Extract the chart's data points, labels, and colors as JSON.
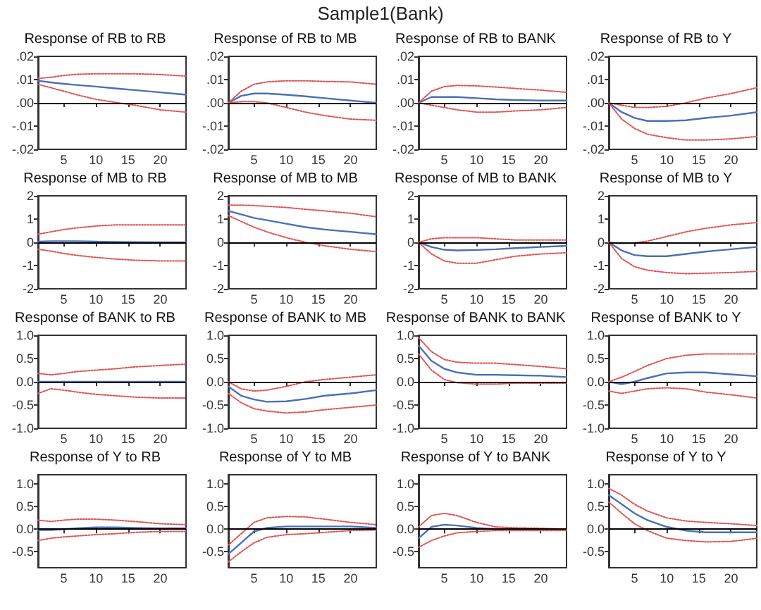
{
  "chart_data": [
    {
      "type": "line",
      "title": "Response of RB to RB",
      "annotations": [
        "Sample1(Bank)"
      ],
      "x": [
        1,
        3,
        5,
        7,
        10,
        13,
        16,
        20,
        24
      ],
      "xlim": [
        1,
        24
      ],
      "xticks": [
        5,
        10,
        15,
        20
      ],
      "ylim": [
        -0.02,
        0.02
      ],
      "yticks": [
        {
          "value": -0.02,
          "label": "-.02"
        },
        {
          "value": -0.01,
          "label": "-.01"
        },
        {
          "value": 0,
          "label": ".00"
        },
        {
          "value": 0.01,
          "label": ".01"
        },
        {
          "value": 0.02,
          "label": ".02"
        }
      ],
      "marker": "none",
      "grid": false,
      "ref_lines": [
        {
          "axis": "y",
          "value": 0,
          "color": "#000000"
        }
      ],
      "series": [
        {
          "color": "#4a6fb5",
          "line_style": "solid",
          "values": [
            0.0095,
            0.0088,
            0.0082,
            0.0077,
            0.007,
            0.0062,
            0.0055,
            0.0045,
            0.0035
          ]
        },
        {
          "color": "#e05050",
          "line_style": "dotted",
          "values": [
            0.0105,
            0.011,
            0.0118,
            0.0123,
            0.0125,
            0.0125,
            0.0125,
            0.0122,
            0.0115
          ]
        },
        {
          "color": "#e05050",
          "line_style": "dotted",
          "values": [
            0.008,
            0.0065,
            0.005,
            0.0035,
            0.0015,
            0.0002,
            -0.001,
            -0.003,
            -0.004
          ]
        }
      ]
    },
    {
      "type": "line",
      "title": "Response of RB to MB",
      "x": [
        1,
        3,
        5,
        7,
        10,
        13,
        16,
        20,
        24
      ],
      "xlim": [
        1,
        24
      ],
      "xticks": [
        5,
        10,
        15,
        20
      ],
      "ylim": [
        -0.02,
        0.02
      ],
      "yticks": [
        {
          "value": -0.02,
          "label": "-.02"
        },
        {
          "value": -0.01,
          "label": "-.01"
        },
        {
          "value": 0,
          "label": ".00"
        },
        {
          "value": 0.01,
          "label": ".01"
        },
        {
          "value": 0.02,
          "label": ".02"
        }
      ],
      "marker": "none",
      "grid": false,
      "ref_lines": [
        {
          "axis": "y",
          "value": 0,
          "color": "#000000"
        }
      ],
      "series": [
        {
          "color": "#4a6fb5",
          "line_style": "solid",
          "values": [
            0,
            0.003,
            0.004,
            0.004,
            0.0035,
            0.0028,
            0.002,
            0.001,
            0
          ]
        },
        {
          "color": "#e05050",
          "line_style": "dotted",
          "values": [
            0,
            0.005,
            0.008,
            0.009,
            0.0095,
            0.0095,
            0.0092,
            0.009,
            0.008
          ]
        },
        {
          "color": "#e05050",
          "line_style": "dotted",
          "values": [
            0,
            0.0005,
            0.0005,
            0,
            -0.002,
            -0.004,
            -0.0055,
            -0.007,
            -0.0075
          ]
        }
      ]
    },
    {
      "type": "line",
      "title": "Response of RB to BANK",
      "x": [
        1,
        3,
        5,
        7,
        10,
        13,
        16,
        20,
        24
      ],
      "xlim": [
        1,
        24
      ],
      "xticks": [
        5,
        10,
        15,
        20
      ],
      "ylim": [
        -0.02,
        0.02
      ],
      "yticks": [
        {
          "value": -0.02,
          "label": "-.02"
        },
        {
          "value": -0.01,
          "label": "-.01"
        },
        {
          "value": 0,
          "label": ".00"
        },
        {
          "value": 0.01,
          "label": ".01"
        },
        {
          "value": 0.02,
          "label": ".02"
        }
      ],
      "marker": "none",
      "grid": false,
      "ref_lines": [
        {
          "axis": "y",
          "value": 0,
          "color": "#000000"
        }
      ],
      "series": [
        {
          "color": "#4a6fb5",
          "line_style": "solid",
          "values": [
            0,
            0.0025,
            0.0025,
            0.0025,
            0.002,
            0.0015,
            0.0012,
            0.001,
            0.001
          ]
        },
        {
          "color": "#e05050",
          "line_style": "dotted",
          "values": [
            0,
            0.005,
            0.007,
            0.0075,
            0.0073,
            0.0068,
            0.0062,
            0.0055,
            0.0045
          ]
        },
        {
          "color": "#e05050",
          "line_style": "dotted",
          "values": [
            0,
            -0.001,
            -0.002,
            -0.003,
            -0.004,
            -0.004,
            -0.0035,
            -0.003,
            -0.002
          ]
        }
      ]
    },
    {
      "type": "line",
      "title": "Response of RB to Y",
      "x": [
        1,
        3,
        5,
        7,
        10,
        13,
        16,
        20,
        24
      ],
      "xlim": [
        1,
        24
      ],
      "xticks": [
        5,
        10,
        15,
        20
      ],
      "ylim": [
        -0.02,
        0.02
      ],
      "yticks": [
        {
          "value": -0.02,
          "label": "-.02"
        },
        {
          "value": -0.01,
          "label": "-.01"
        },
        {
          "value": 0,
          "label": ".00"
        },
        {
          "value": 0.01,
          "label": ".01"
        },
        {
          "value": 0.02,
          "label": ".02"
        }
      ],
      "marker": "none",
      "grid": false,
      "ref_lines": [
        {
          "axis": "y",
          "value": 0,
          "color": "#000000"
        }
      ],
      "series": [
        {
          "color": "#4a6fb5",
          "line_style": "solid",
          "values": [
            0,
            -0.004,
            -0.0065,
            -0.0078,
            -0.0078,
            -0.0075,
            -0.0065,
            -0.0055,
            -0.004
          ]
        },
        {
          "color": "#e05050",
          "line_style": "dotted",
          "values": [
            0,
            -0.001,
            -0.002,
            -0.002,
            -0.0015,
            0,
            0.002,
            0.004,
            0.0065
          ]
        },
        {
          "color": "#e05050",
          "line_style": "dotted",
          "values": [
            0,
            -0.007,
            -0.011,
            -0.0135,
            -0.015,
            -0.016,
            -0.016,
            -0.0155,
            -0.0145
          ]
        }
      ]
    },
    {
      "type": "line",
      "title": "Response of MB to RB",
      "x": [
        1,
        3,
        5,
        7,
        10,
        13,
        16,
        20,
        24
      ],
      "xlim": [
        1,
        24
      ],
      "xticks": [
        5,
        10,
        15,
        20
      ],
      "ylim": [
        -2,
        2
      ],
      "yticks": [
        -2,
        -1,
        0,
        1,
        2
      ],
      "marker": "none",
      "grid": false,
      "ref_lines": [
        {
          "axis": "y",
          "value": 0,
          "color": "#000000"
        }
      ],
      "series": [
        {
          "color": "#4a6fb5",
          "line_style": "solid",
          "values": [
            0.03,
            0.05,
            0.05,
            0.05,
            0.03,
            0.02,
            0.01,
            0,
            0
          ]
        },
        {
          "color": "#e05050",
          "line_style": "dotted",
          "values": [
            0.35,
            0.45,
            0.55,
            0.62,
            0.7,
            0.75,
            0.75,
            0.75,
            0.75
          ]
        },
        {
          "color": "#e05050",
          "line_style": "dotted",
          "values": [
            -0.3,
            -0.38,
            -0.48,
            -0.56,
            -0.65,
            -0.72,
            -0.77,
            -0.8,
            -0.8
          ]
        }
      ]
    },
    {
      "type": "line",
      "title": "Response of MB to MB",
      "x": [
        1,
        3,
        5,
        7,
        10,
        13,
        16,
        20,
        24
      ],
      "xlim": [
        1,
        24
      ],
      "xticks": [
        5,
        10,
        15,
        20
      ],
      "ylim": [
        -2,
        2
      ],
      "yticks": [
        -2,
        -1,
        0,
        1,
        2
      ],
      "marker": "none",
      "grid": false,
      "ref_lines": [
        {
          "axis": "y",
          "value": 0,
          "color": "#000000"
        }
      ],
      "series": [
        {
          "color": "#4a6fb5",
          "line_style": "solid",
          "values": [
            1.35,
            1.2,
            1.05,
            0.95,
            0.8,
            0.65,
            0.55,
            0.45,
            0.35
          ]
        },
        {
          "color": "#e05050",
          "line_style": "dotted",
          "values": [
            1.6,
            1.6,
            1.58,
            1.55,
            1.5,
            1.42,
            1.35,
            1.25,
            1.1
          ]
        },
        {
          "color": "#e05050",
          "line_style": "dotted",
          "values": [
            1.15,
            0.9,
            0.65,
            0.45,
            0.2,
            0,
            -0.15,
            -0.3,
            -0.4
          ]
        }
      ]
    },
    {
      "type": "line",
      "title": "Response of MB to BANK",
      "x": [
        1,
        3,
        5,
        7,
        10,
        13,
        16,
        20,
        24
      ],
      "xlim": [
        1,
        24
      ],
      "xticks": [
        5,
        10,
        15,
        20
      ],
      "ylim": [
        -2,
        2
      ],
      "yticks": [
        -2,
        -1,
        0,
        1,
        2
      ],
      "marker": "none",
      "grid": false,
      "ref_lines": [
        {
          "axis": "y",
          "value": 0,
          "color": "#000000"
        }
      ],
      "series": [
        {
          "color": "#4a6fb5",
          "line_style": "solid",
          "values": [
            0,
            -0.2,
            -0.32,
            -0.35,
            -0.33,
            -0.3,
            -0.25,
            -0.2,
            -0.15
          ]
        },
        {
          "color": "#e05050",
          "line_style": "dotted",
          "values": [
            0,
            0.15,
            0.2,
            0.2,
            0.2,
            0.15,
            0.1,
            0.1,
            0.1
          ]
        },
        {
          "color": "#e05050",
          "line_style": "dotted",
          "values": [
            0,
            -0.5,
            -0.8,
            -0.9,
            -0.9,
            -0.75,
            -0.6,
            -0.5,
            -0.45
          ]
        }
      ]
    },
    {
      "type": "line",
      "title": "Response of MB to Y",
      "x": [
        1,
        3,
        5,
        7,
        10,
        13,
        16,
        20,
        24
      ],
      "xlim": [
        1,
        24
      ],
      "xticks": [
        5,
        10,
        15,
        20
      ],
      "ylim": [
        -2,
        2
      ],
      "yticks": [
        -2,
        -1,
        0,
        1,
        2
      ],
      "marker": "none",
      "grid": false,
      "ref_lines": [
        {
          "axis": "y",
          "value": 0,
          "color": "#000000"
        }
      ],
      "series": [
        {
          "color": "#4a6fb5",
          "line_style": "solid",
          "values": [
            0,
            -0.35,
            -0.55,
            -0.6,
            -0.6,
            -0.5,
            -0.4,
            -0.3,
            -0.2
          ]
        },
        {
          "color": "#e05050",
          "line_style": "dotted",
          "values": [
            0,
            -0.05,
            -0.02,
            0.05,
            0.25,
            0.45,
            0.6,
            0.75,
            0.85
          ]
        },
        {
          "color": "#e05050",
          "line_style": "dotted",
          "values": [
            0,
            -0.7,
            -1.05,
            -1.2,
            -1.3,
            -1.35,
            -1.33,
            -1.3,
            -1.25
          ]
        }
      ]
    },
    {
      "type": "line",
      "title": "Response of BANK to RB",
      "x": [
        1,
        3,
        5,
        7,
        10,
        13,
        16,
        20,
        24
      ],
      "xlim": [
        1,
        24
      ],
      "xticks": [
        5,
        10,
        15,
        20
      ],
      "ylim": [
        -1,
        1
      ],
      "yticks": [
        {
          "value": -1,
          "label": "-1.0"
        },
        -0.5,
        {
          "value": 0,
          "label": "0.0"
        },
        0.5,
        {
          "value": 1,
          "label": "1.0"
        }
      ],
      "marker": "none",
      "grid": false,
      "ref_lines": [
        {
          "axis": "y",
          "value": 0,
          "color": "#000000"
        }
      ],
      "series": [
        {
          "color": "#4a6fb5",
          "line_style": "solid",
          "values": [
            0,
            0,
            0,
            0,
            0,
            0,
            0,
            0,
            0
          ]
        },
        {
          "color": "#e05050",
          "line_style": "dotted",
          "values": [
            0.18,
            0.15,
            0.18,
            0.22,
            0.25,
            0.28,
            0.32,
            0.35,
            0.38
          ]
        },
        {
          "color": "#e05050",
          "line_style": "dotted",
          "values": [
            -0.25,
            -0.15,
            -0.18,
            -0.22,
            -0.27,
            -0.3,
            -0.33,
            -0.35,
            -0.35
          ]
        }
      ]
    },
    {
      "type": "line",
      "title": "Response of BANK to MB",
      "x": [
        1,
        3,
        5,
        7,
        10,
        13,
        16,
        20,
        24
      ],
      "xlim": [
        1,
        24
      ],
      "xticks": [
        5,
        10,
        15,
        20
      ],
      "ylim": [
        -1,
        1
      ],
      "yticks": [
        {
          "value": -1,
          "label": "-1.0"
        },
        -0.5,
        {
          "value": 0,
          "label": "0.0"
        },
        0.5,
        {
          "value": 1,
          "label": "1.0"
        }
      ],
      "marker": "none",
      "grid": false,
      "ref_lines": [
        {
          "axis": "y",
          "value": 0,
          "color": "#000000"
        }
      ],
      "series": [
        {
          "color": "#4a6fb5",
          "line_style": "solid",
          "values": [
            -0.1,
            -0.3,
            -0.38,
            -0.43,
            -0.42,
            -0.37,
            -0.3,
            -0.25,
            -0.18
          ]
        },
        {
          "color": "#e05050",
          "line_style": "dotted",
          "values": [
            0,
            -0.15,
            -0.2,
            -0.18,
            -0.1,
            0,
            0.05,
            0.1,
            0.15
          ]
        },
        {
          "color": "#e05050",
          "line_style": "dotted",
          "values": [
            -0.25,
            -0.45,
            -0.58,
            -0.63,
            -0.67,
            -0.65,
            -0.6,
            -0.55,
            -0.5
          ]
        }
      ]
    },
    {
      "type": "line",
      "title": "Response of BANK to BANK",
      "x": [
        1,
        3,
        5,
        7,
        10,
        13,
        16,
        20,
        24
      ],
      "xlim": [
        1,
        24
      ],
      "xticks": [
        5,
        10,
        15,
        20
      ],
      "ylim": [
        -1,
        1
      ],
      "yticks": [
        {
          "value": -1,
          "label": "-1.0"
        },
        -0.5,
        {
          "value": 0,
          "label": "0.0"
        },
        0.5,
        {
          "value": 1,
          "label": "1.0"
        }
      ],
      "marker": "none",
      "grid": false,
      "ref_lines": [
        {
          "axis": "y",
          "value": 0,
          "color": "#000000"
        }
      ],
      "series": [
        {
          "color": "#4a6fb5",
          "line_style": "solid",
          "values": [
            0.78,
            0.45,
            0.28,
            0.2,
            0.15,
            0.15,
            0.14,
            0.13,
            0.1
          ]
        },
        {
          "color": "#e05050",
          "line_style": "dotted",
          "values": [
            0.95,
            0.65,
            0.48,
            0.42,
            0.4,
            0.4,
            0.37,
            0.33,
            0.28
          ]
        },
        {
          "color": "#e05050",
          "line_style": "dotted",
          "values": [
            0.6,
            0.25,
            0.05,
            -0.02,
            -0.05,
            -0.05,
            -0.03,
            -0.03,
            -0.03
          ]
        }
      ]
    },
    {
      "type": "line",
      "title": "Response of BANK to Y",
      "x": [
        1,
        3,
        5,
        7,
        10,
        13,
        16,
        20,
        24
      ],
      "xlim": [
        1,
        24
      ],
      "xticks": [
        5,
        10,
        15,
        20
      ],
      "ylim": [
        -1,
        1
      ],
      "yticks": [
        {
          "value": -1,
          "label": "-1.0"
        },
        -0.5,
        {
          "value": 0,
          "label": "0.0"
        },
        0.5,
        {
          "value": 1,
          "label": "1.0"
        }
      ],
      "marker": "none",
      "grid": false,
      "ref_lines": [
        {
          "axis": "y",
          "value": 0,
          "color": "#000000"
        }
      ],
      "series": [
        {
          "color": "#4a6fb5",
          "line_style": "solid",
          "values": [
            0,
            -0.05,
            0,
            0.08,
            0.18,
            0.2,
            0.2,
            0.16,
            0.12
          ]
        },
        {
          "color": "#e05050",
          "line_style": "dotted",
          "values": [
            0,
            0.1,
            0.22,
            0.35,
            0.5,
            0.57,
            0.6,
            0.6,
            0.6
          ]
        },
        {
          "color": "#e05050",
          "line_style": "dotted",
          "values": [
            -0.2,
            -0.25,
            -0.2,
            -0.15,
            -0.13,
            -0.15,
            -0.22,
            -0.28,
            -0.35
          ]
        }
      ]
    },
    {
      "type": "line",
      "title": "Response of Y to RB",
      "x": [
        1,
        3,
        5,
        7,
        10,
        13,
        16,
        20,
        24
      ],
      "xlim": [
        1,
        24
      ],
      "xticks": [
        5,
        10,
        15,
        20
      ],
      "ylim": [
        -0.85,
        1.2
      ],
      "yticks": [
        -0.5,
        {
          "value": 0,
          "label": "0.0"
        },
        0.5,
        {
          "value": 1,
          "label": "1.0"
        }
      ],
      "marker": "none",
      "grid": false,
      "ref_lines": [
        {
          "axis": "y",
          "value": 0,
          "color": "#000000"
        }
      ],
      "series": [
        {
          "color": "#4a6fb5",
          "line_style": "solid",
          "values": [
            -0.02,
            -0.02,
            0,
            0.02,
            0.04,
            0.04,
            0.03,
            0.02,
            0.02
          ]
        },
        {
          "color": "#e05050",
          "line_style": "dotted",
          "values": [
            0.2,
            0.17,
            0.2,
            0.22,
            0.22,
            0.2,
            0.17,
            0.12,
            0.1
          ]
        },
        {
          "color": "#e05050",
          "line_style": "dotted",
          "values": [
            -0.25,
            -0.2,
            -0.17,
            -0.15,
            -0.12,
            -0.1,
            -0.07,
            -0.05,
            -0.05
          ]
        }
      ]
    },
    {
      "type": "line",
      "title": "Response of Y to MB",
      "x": [
        1,
        3,
        5,
        7,
        10,
        13,
        16,
        20,
        24
      ],
      "xlim": [
        1,
        24
      ],
      "xticks": [
        5,
        10,
        15,
        20
      ],
      "ylim": [
        -0.85,
        1.2
      ],
      "yticks": [
        -0.5,
        {
          "value": 0,
          "label": "0.0"
        },
        0.5,
        {
          "value": 1,
          "label": "1.0"
        }
      ],
      "marker": "none",
      "grid": false,
      "ref_lines": [
        {
          "axis": "y",
          "value": 0,
          "color": "#000000"
        }
      ],
      "series": [
        {
          "color": "#4a6fb5",
          "line_style": "solid",
          "values": [
            -0.55,
            -0.3,
            -0.05,
            0.03,
            0.06,
            0.06,
            0.06,
            0.06,
            0.03
          ]
        },
        {
          "color": "#e05050",
          "line_style": "dotted",
          "values": [
            -0.35,
            -0.1,
            0.15,
            0.25,
            0.28,
            0.27,
            0.22,
            0.15,
            0.1
          ]
        },
        {
          "color": "#e05050",
          "line_style": "dotted",
          "values": [
            -0.72,
            -0.5,
            -0.3,
            -0.18,
            -0.12,
            -0.1,
            -0.07,
            -0.03,
            -0.02
          ]
        }
      ]
    },
    {
      "type": "line",
      "title": "Response of Y to BANK",
      "x": [
        1,
        3,
        5,
        7,
        10,
        13,
        16,
        20,
        24
      ],
      "xlim": [
        1,
        24
      ],
      "xticks": [
        5,
        10,
        15,
        20
      ],
      "ylim": [
        -0.85,
        1.2
      ],
      "yticks": [
        -0.5,
        {
          "value": 0,
          "label": "0.0"
        },
        0.5,
        {
          "value": 1,
          "label": "1.0"
        }
      ],
      "marker": "none",
      "grid": false,
      "ref_lines": [
        {
          "axis": "y",
          "value": 0,
          "color": "#000000"
        }
      ],
      "series": [
        {
          "color": "#4a6fb5",
          "line_style": "solid",
          "values": [
            -0.2,
            0.05,
            0.1,
            0.08,
            0.03,
            0,
            0,
            0,
            0
          ]
        },
        {
          "color": "#e05050",
          "line_style": "dotted",
          "values": [
            0.05,
            0.3,
            0.35,
            0.3,
            0.15,
            0.05,
            0.03,
            0.02,
            0
          ]
        },
        {
          "color": "#e05050",
          "line_style": "dotted",
          "values": [
            -0.4,
            -0.25,
            -0.15,
            -0.08,
            -0.05,
            -0.03,
            -0.03,
            -0.03,
            -0.03
          ]
        }
      ]
    },
    {
      "type": "line",
      "title": "Response of Y to Y",
      "x": [
        1,
        3,
        5,
        7,
        10,
        13,
        16,
        20,
        24
      ],
      "xlim": [
        1,
        24
      ],
      "xticks": [
        5,
        10,
        15,
        20
      ],
      "ylim": [
        -0.85,
        1.2
      ],
      "yticks": [
        -0.5,
        {
          "value": 0,
          "label": "0.0"
        },
        0.5,
        {
          "value": 1,
          "label": "1.0"
        }
      ],
      "marker": "none",
      "grid": false,
      "ref_lines": [
        {
          "axis": "y",
          "value": 0,
          "color": "#000000"
        }
      ],
      "series": [
        {
          "color": "#4a6fb5",
          "line_style": "solid",
          "values": [
            0.75,
            0.55,
            0.35,
            0.2,
            0.05,
            -0.03,
            -0.07,
            -0.07,
            -0.07
          ]
        },
        {
          "color": "#e05050",
          "line_style": "dotted",
          "values": [
            0.9,
            0.75,
            0.55,
            0.4,
            0.25,
            0.18,
            0.15,
            0.12,
            0.08
          ]
        },
        {
          "color": "#e05050",
          "line_style": "dotted",
          "values": [
            0.6,
            0.35,
            0.12,
            -0.03,
            -0.2,
            -0.25,
            -0.28,
            -0.27,
            -0.2
          ]
        }
      ]
    }
  ]
}
